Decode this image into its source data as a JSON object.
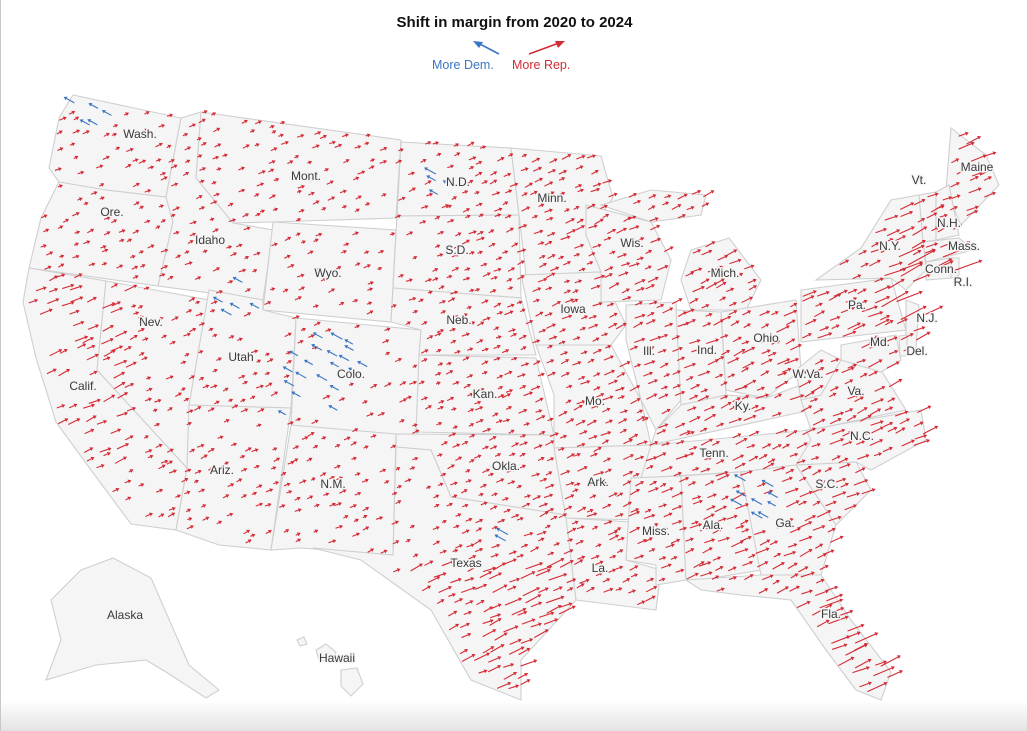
{
  "title": "Shift in margin from 2020 to 2024",
  "legend": {
    "dem_label": "More Dem.",
    "rep_label": "More Rep.",
    "dem_color": "#3b76c4",
    "rep_color": "#d42b35"
  },
  "map_style": {
    "land_color": "#f5f5f5",
    "border_color": "#cfcfcf"
  },
  "state_labels": [
    "Wash.",
    "Mont.",
    "N.D.",
    "Minn.",
    "Ore.",
    "Idaho",
    "Wyo.",
    "S.D.",
    "Wis.",
    "Mich.",
    "Nev.",
    "Utah",
    "Neb.",
    "Iowa",
    "Colo.",
    "Kan.",
    "Ill.",
    "Ind.",
    "Ohio",
    "Calif.",
    "Mo.",
    "Ky.",
    "W.Va.",
    "Va.",
    "Md.",
    "Del.",
    "Pa.",
    "N.J.",
    "N.Y.",
    "Vt.",
    "Maine",
    "N.H.",
    "Mass.",
    "Conn.",
    "R.I.",
    "Ariz.",
    "N.M.",
    "Okla.",
    "Ark.",
    "Tenn.",
    "N.C.",
    "S.C.",
    "Miss.",
    "Ala.",
    "Ga.",
    "Texas",
    "La.",
    "Fla.",
    "Alaska",
    "Hawaii"
  ]
}
